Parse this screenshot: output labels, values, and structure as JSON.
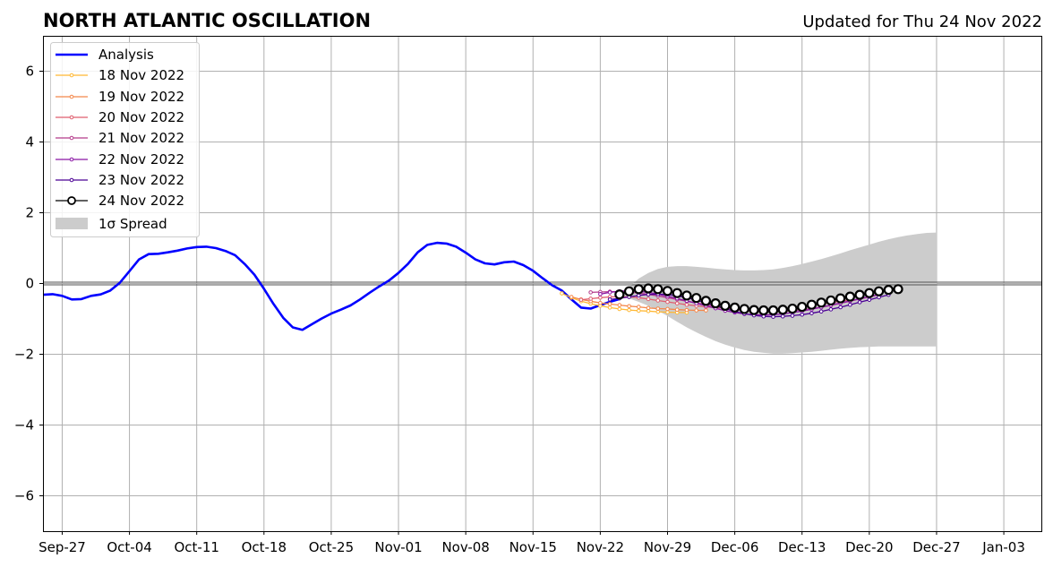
{
  "title": "NORTH ATLANTIC OSCILLATION",
  "subtitle": "Updated for Thu 24 Nov 2022",
  "chart_data": {
    "type": "line",
    "title": "NORTH ATLANTIC OSCILLATION",
    "subtitle": "Updated for Thu 24 Nov 2022",
    "xlabel": "",
    "ylabel": "",
    "x_axis_type": "date",
    "xlim": [
      "2022-09-25",
      "2023-01-07"
    ],
    "ylim": [
      -7,
      7
    ],
    "x_ticks": [
      "2022-09-27",
      "2022-10-04",
      "2022-10-11",
      "2022-10-18",
      "2022-10-25",
      "2022-11-01",
      "2022-11-08",
      "2022-11-15",
      "2022-11-22",
      "2022-11-29",
      "2022-12-06",
      "2022-12-13",
      "2022-12-20",
      "2022-12-27",
      "2023-01-03"
    ],
    "x_tick_labels": [
      "Sep-27",
      "Oct-04",
      "Oct-11",
      "Oct-18",
      "Oct-25",
      "Nov-01",
      "Nov-08",
      "Nov-15",
      "Nov-22",
      "Nov-29",
      "Dec-06",
      "Dec-13",
      "Dec-20",
      "Dec-27",
      "Jan-03"
    ],
    "y_ticks": [
      -6,
      -4,
      -2,
      0,
      2,
      4,
      6
    ],
    "y_tick_labels": [
      "−6",
      "−4",
      "−2",
      "0",
      "2",
      "4",
      "6"
    ],
    "grid": true,
    "zero_line": true,
    "legend_position": "upper-left",
    "legend_labels": [
      "Analysis",
      "18 Nov 2022",
      "19 Nov 2022",
      "20 Nov 2022",
      "21 Nov 2022",
      "22 Nov 2022",
      "23 Nov 2022",
      "24 Nov 2022",
      "1σ Spread"
    ],
    "analysis": {
      "name": "Analysis",
      "color": "#0000ff",
      "start": "2022-09-25",
      "y": [
        -0.32,
        -0.3,
        -0.35,
        -0.45,
        -0.44,
        -0.35,
        -0.31,
        -0.2,
        0.02,
        0.35,
        0.68,
        0.83,
        0.84,
        0.88,
        0.93,
        0.99,
        1.03,
        1.04,
        1.0,
        0.92,
        0.8,
        0.55,
        0.25,
        -0.15,
        -0.58,
        -0.97,
        -1.24,
        -1.31,
        -1.15,
        -0.99,
        -0.85,
        -0.74,
        -0.62,
        -0.45,
        -0.26,
        -0.08,
        0.08,
        0.3,
        0.56,
        0.88,
        1.09,
        1.15,
        1.13,
        1.04,
        0.87,
        0.68,
        0.57,
        0.54,
        0.6,
        0.62,
        0.52,
        0.36,
        0.15,
        -0.05,
        -0.2,
        -0.45,
        -0.68,
        -0.71,
        -0.61,
        -0.52,
        -0.44
      ]
    },
    "forecasts": [
      {
        "name": "18 Nov 2022",
        "color": "#ffb833",
        "start": "2022-11-18",
        "y": [
          -0.28,
          -0.4,
          -0.5,
          -0.57,
          -0.63,
          -0.68,
          -0.72,
          -0.75,
          -0.77,
          -0.78,
          -0.8,
          -0.81,
          -0.82,
          -0.82
        ]
      },
      {
        "name": "19 Nov 2022",
        "color": "#f4874a",
        "start": "2022-11-19",
        "y": [
          -0.38,
          -0.45,
          -0.5,
          -0.55,
          -0.58,
          -0.61,
          -0.64,
          -0.66,
          -0.69,
          -0.71,
          -0.72,
          -0.74,
          -0.75,
          -0.76,
          -0.76
        ]
      },
      {
        "name": "20 Nov 2022",
        "color": "#df5e6e",
        "start": "2022-11-20",
        "y": [
          -0.46,
          -0.43,
          -0.4,
          -0.38,
          -0.37,
          -0.38,
          -0.4,
          -0.44,
          -0.48,
          -0.52,
          -0.56,
          -0.6,
          -0.63,
          -0.66,
          -0.68,
          -0.7,
          -0.72,
          -0.74,
          -0.75,
          -0.75,
          -0.74,
          -0.72,
          -0.69,
          -0.65,
          -0.62,
          -0.58,
          -0.54,
          -0.5,
          -0.46
        ]
      },
      {
        "name": "21 Nov 2022",
        "color": "#b43b8b",
        "start": "2022-11-21",
        "y": [
          -0.25,
          -0.24,
          -0.23,
          -0.23,
          -0.24,
          -0.27,
          -0.31,
          -0.35,
          -0.4,
          -0.45,
          -0.5,
          -0.55,
          -0.6,
          -0.65,
          -0.7,
          -0.74,
          -0.77,
          -0.79,
          -0.8,
          -0.8,
          -0.79,
          -0.77,
          -0.74,
          -0.71,
          -0.67,
          -0.62,
          -0.56,
          -0.5,
          -0.44,
          -0.38,
          -0.32
        ]
      },
      {
        "name": "22 Nov 2022",
        "color": "#8a16a5",
        "start": "2022-11-22",
        "y": [
          -0.3,
          -0.25,
          -0.22,
          -0.2,
          -0.22,
          -0.25,
          -0.3,
          -0.36,
          -0.42,
          -0.49,
          -0.56,
          -0.63,
          -0.7,
          -0.77,
          -0.82,
          -0.86,
          -0.88,
          -0.89,
          -0.88,
          -0.86,
          -0.82,
          -0.78,
          -0.73,
          -0.67,
          -0.61,
          -0.55,
          -0.49,
          -0.43,
          -0.37,
          -0.31
        ]
      },
      {
        "name": "23 Nov 2022",
        "color": "#4b0095",
        "start": "2022-11-23",
        "y": [
          -0.45,
          -0.42,
          -0.38,
          -0.34,
          -0.31,
          -0.3,
          -0.31,
          -0.35,
          -0.4,
          -0.47,
          -0.55,
          -0.63,
          -0.71,
          -0.79,
          -0.85,
          -0.9,
          -0.93,
          -0.94,
          -0.93,
          -0.91,
          -0.88,
          -0.84,
          -0.79,
          -0.73,
          -0.67,
          -0.6,
          -0.53,
          -0.46,
          -0.39,
          -0.32
        ]
      },
      {
        "name": "24 Nov 2022",
        "color": "#000000",
        "start": "2022-11-24",
        "y": [
          -0.31,
          -0.22,
          -0.16,
          -0.14,
          -0.16,
          -0.21,
          -0.27,
          -0.34,
          -0.41,
          -0.49,
          -0.56,
          -0.63,
          -0.68,
          -0.72,
          -0.75,
          -0.76,
          -0.76,
          -0.74,
          -0.71,
          -0.66,
          -0.6,
          -0.54,
          -0.48,
          -0.42,
          -0.37,
          -0.32,
          -0.27,
          -0.22,
          -0.18,
          -0.16
        ]
      }
    ],
    "spread": {
      "name": "1σ Spread",
      "color": "#cccccc",
      "start": "2022-11-24",
      "upper": [
        -0.31,
        -0.1,
        0.14,
        0.3,
        0.41,
        0.47,
        0.49,
        0.49,
        0.47,
        0.45,
        0.42,
        0.4,
        0.38,
        0.37,
        0.37,
        0.38,
        0.4,
        0.44,
        0.49,
        0.55,
        0.62,
        0.69,
        0.77,
        0.85,
        0.94,
        1.02,
        1.1,
        1.18,
        1.25,
        1.31,
        1.36,
        1.4,
        1.43,
        1.44
      ],
      "lower": [
        -0.31,
        -0.42,
        -0.52,
        -0.63,
        -0.77,
        -0.92,
        -1.08,
        -1.24,
        -1.38,
        -1.51,
        -1.63,
        -1.73,
        -1.81,
        -1.88,
        -1.93,
        -1.96,
        -1.98,
        -1.98,
        -1.97,
        -1.95,
        -1.93,
        -1.9,
        -1.87,
        -1.84,
        -1.82,
        -1.8,
        -1.79,
        -1.78,
        -1.78,
        -1.78,
        -1.78,
        -1.78,
        -1.78,
        -1.78
      ]
    }
  }
}
